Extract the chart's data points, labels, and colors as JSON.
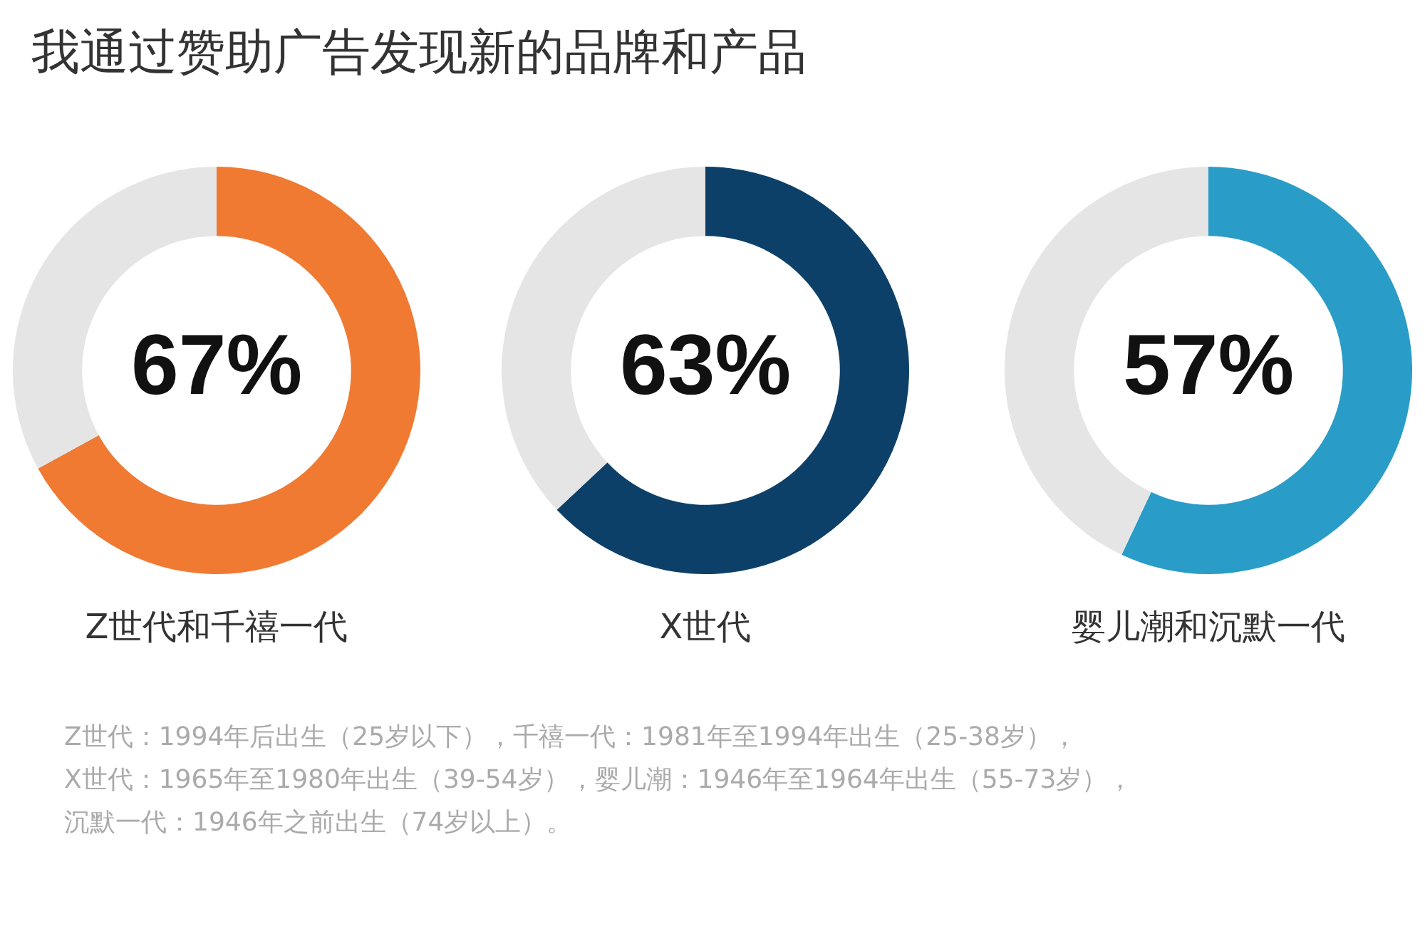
{
  "chart_data": [
    {
      "type": "other",
      "title": "我通过赞助广告发现新的品牌和产品"
    },
    {
      "type": "donut",
      "categories": [
        null,
        null
      ],
      "values": [
        67,
        33
      ],
      "colors": [
        "#f07a32",
        "#e5e5e5"
      ],
      "value_labels": [
        "67%",
        null
      ],
      "xlabel": "Z世代和千禧一代"
    },
    {
      "type": "donut",
      "categories": [
        null,
        null
      ],
      "values": [
        63,
        37
      ],
      "colors": [
        "#0d4068",
        "#e5e5e5"
      ],
      "value_labels": [
        "63%",
        null
      ],
      "xlabel": "X世代"
    },
    {
      "type": "donut",
      "categories": [
        null,
        null
      ],
      "values": [
        57,
        43
      ],
      "colors": [
        "#2a9cc8",
        "#e5e5e5"
      ],
      "value_labels": [
        "57%",
        null
      ],
      "xlabel": "婴儿潮和沉默一代"
    },
    {
      "type": "other",
      "annotations": [
        "Z世代：1994年后出生（25岁以下），千禧一代：1981年至1994年出生（25-38岁），",
        "X世代：1965年至1980年出生（39-54岁），婴儿潮：1946年至1964年出生（55-73岁），",
        "沉默一代：1946年之前出生（74岁以上）。"
      ]
    }
  ]
}
